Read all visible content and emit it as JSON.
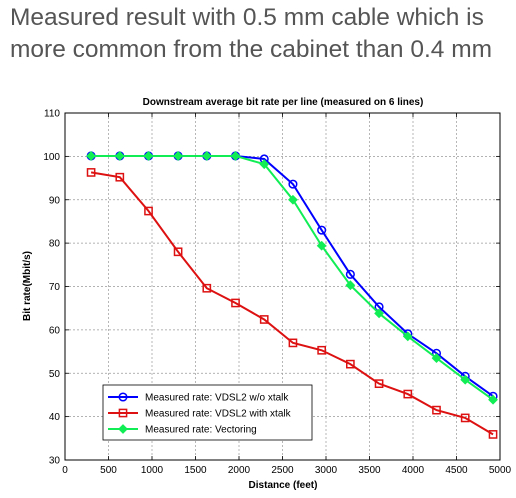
{
  "slide": {
    "title_line1": "Measured result with 0.5 mm cable which is",
    "title_line2": "more common from the cabinet than 0.4 mm"
  },
  "chart_data": {
    "type": "line",
    "title": "Downstream average bit rate per line (measured on 6 lines)",
    "xlabel": "Distance (feet)",
    "ylabel": "Bit rate(Mbit/s)",
    "xlim": [
      0,
      5000
    ],
    "ylim": [
      30,
      110
    ],
    "xticks": [
      0,
      500,
      1000,
      1500,
      2000,
      2500,
      3000,
      3500,
      4000,
      4500,
      5000
    ],
    "yticks": [
      30,
      40,
      50,
      60,
      70,
      80,
      90,
      100,
      110
    ],
    "grid": true,
    "legend_position": "bottom-left",
    "series": [
      {
        "name": "Measured rate: VDSL2 w/o xtalk",
        "color": "#0000ff",
        "marker": "circle",
        "x": [
          300,
          630,
          960,
          1300,
          1630,
          1960,
          2290,
          2620,
          2950,
          3280,
          3610,
          3940,
          4270,
          4600,
          4920
        ],
        "values": [
          100.1,
          100.1,
          100.1,
          100.1,
          100.1,
          100.1,
          99.4,
          93.6,
          83.0,
          72.8,
          65.3,
          59.1,
          54.6,
          49.3,
          44.7
        ]
      },
      {
        "name": "Measured rate: VDSL2 with xtalk",
        "color": "#dd1111",
        "marker": "square",
        "x": [
          300,
          630,
          960,
          1300,
          1630,
          1960,
          2290,
          2620,
          2950,
          3280,
          3610,
          3940,
          4270,
          4600,
          4920
        ],
        "values": [
          96.3,
          95.2,
          87.4,
          78.0,
          69.6,
          66.2,
          62.4,
          57.0,
          55.3,
          52.1,
          47.6,
          45.2,
          41.5,
          39.7,
          35.9
        ]
      },
      {
        "name": "Measured rate: Vectoring",
        "color": "#11ee55",
        "marker": "diamond",
        "x": [
          300,
          630,
          960,
          1300,
          1630,
          1960,
          2290,
          2620,
          2950,
          3280,
          3610,
          3940,
          4270,
          4600,
          4920
        ],
        "values": [
          100.1,
          100.1,
          100.1,
          100.1,
          100.1,
          100.1,
          98.2,
          90.0,
          79.4,
          70.3,
          63.8,
          58.5,
          53.5,
          48.5,
          43.9
        ]
      }
    ]
  }
}
